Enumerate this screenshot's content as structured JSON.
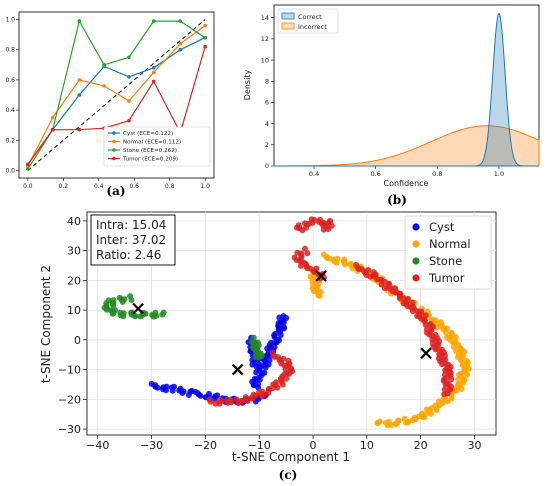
{
  "chart_data": [
    {
      "type": "line",
      "panel_label": "(a)",
      "x": [
        0.0,
        0.14,
        0.29,
        0.43,
        0.57,
        0.71,
        0.86,
        1.0
      ],
      "series": [
        {
          "name": "Cyst (ECE=0.122)",
          "color": "#1f77b4",
          "values": [
            0.04,
            0.27,
            0.5,
            0.69,
            0.62,
            0.68,
            0.8,
            0.88
          ]
        },
        {
          "name": "Normal (ECE=0.112)",
          "color": "#ff7f0e",
          "values": [
            0.03,
            0.35,
            0.6,
            0.56,
            0.46,
            0.65,
            0.84,
            0.96
          ]
        },
        {
          "name": "Stone (ECE=0.262)",
          "color": "#2ca02c",
          "values": [
            0.01,
            0.27,
            0.99,
            0.7,
            0.75,
            0.99,
            0.99,
            0.88
          ]
        },
        {
          "name": "Tumor (ECE=0.209)",
          "color": "#d62728",
          "values": [
            0.04,
            0.27,
            0.27,
            0.28,
            0.33,
            0.59,
            0.25,
            0.82
          ]
        }
      ],
      "diagonal": [
        [
          0,
          0
        ],
        [
          1,
          1
        ]
      ],
      "xlim": [
        -0.05,
        1.05
      ],
      "ylim": [
        -0.05,
        1.05
      ],
      "xticks": [
        "0.0",
        "0.2",
        "0.4",
        "0.6",
        "0.8",
        "1.0"
      ],
      "yticks": [
        "0.0",
        "0.2",
        "0.4",
        "0.6",
        "0.8",
        "1.0"
      ],
      "legend_loc": "lower-right"
    },
    {
      "type": "area",
      "panel_label": "(b)",
      "xlabel": "Confidence",
      "ylabel": "Density",
      "xlim": [
        0.27,
        1.13
      ],
      "ylim": [
        0,
        15.2
      ],
      "xticks": [
        "0.4",
        "0.6",
        "0.8",
        "1.0"
      ],
      "yticks": [
        "0",
        "2",
        "4",
        "6",
        "8",
        "10",
        "12",
        "14"
      ],
      "legend_loc": "top-left",
      "series": [
        {
          "name": "Correct",
          "color": "#1f77b4",
          "peak": 1.0,
          "peak_density": 14.4,
          "spread": 0.02
        },
        {
          "name": "Incorrect",
          "color": "#ff7f0e",
          "peak": 0.96,
          "peak_density": 3.8,
          "spread": 0.18
        }
      ]
    },
    {
      "type": "scatter",
      "panel_label": "(c)",
      "xlabel": "t-SNE Component 1",
      "ylabel": "t-SNE Component 2",
      "xlim": [
        -42,
        34
      ],
      "ylim": [
        -32,
        43
      ],
      "xticks": [
        "−40",
        "−30",
        "−20",
        "−10",
        "0",
        "10",
        "20",
        "30"
      ],
      "yticks": [
        "−30",
        "−20",
        "−10",
        "0",
        "10",
        "20",
        "30",
        "40"
      ],
      "legend_loc": "top-right",
      "stats_box": [
        "Intra: 15.04",
        "Inter: 37.02",
        "Ratio: 2.46"
      ],
      "centroids": [
        [
          -32.5,
          10.5
        ],
        [
          -14,
          -10
        ],
        [
          1.5,
          21.5
        ],
        [
          21,
          -4.5
        ]
      ],
      "series": [
        {
          "name": "Cyst",
          "color": "#0000ee",
          "paths": [
            [
              [
                -30,
                -15.5
              ],
              [
                -26,
                -16.5
              ],
              [
                -22,
                -18
              ],
              [
                -18,
                -19.5
              ],
              [
                -15,
                -20.5
              ],
              [
                -12,
                -20.5
              ],
              [
                -9,
                -19
              ]
            ],
            [
              [
                -11,
                -16
              ],
              [
                -10,
                -12
              ],
              [
                -9,
                -8
              ],
              [
                -8,
                -4
              ],
              [
                -7,
                0
              ],
              [
                -6,
                4
              ],
              [
                -5.5,
                8
              ]
            ],
            [
              [
                -11.5,
                0
              ],
              [
                -11,
                -4
              ],
              [
                -10.5,
                -9
              ]
            ]
          ]
        },
        {
          "name": "Normal",
          "color": "#ffa500",
          "paths": [
            [
              [
                2,
                28
              ],
              [
                6,
                26
              ],
              [
                10,
                23
              ],
              [
                13,
                19
              ],
              [
                16,
                15
              ],
              [
                19,
                11
              ],
              [
                22,
                7
              ],
              [
                25,
                3
              ],
              [
                27,
                -3
              ],
              [
                28.5,
                -9
              ],
              [
                27,
                -16
              ],
              [
                24,
                -21
              ],
              [
                20,
                -26
              ],
              [
                16,
                -28
              ],
              [
                12,
                -28
              ]
            ],
            [
              [
                0,
                22
              ],
              [
                1,
                15
              ]
            ]
          ]
        },
        {
          "name": "Stone",
          "color": "#228b22",
          "paths": [
            [
              [
                -34,
                14
              ],
              [
                -37,
                13
              ],
              [
                -38.5,
                11
              ],
              [
                -37,
                9
              ],
              [
                -34,
                8.5
              ],
              [
                -31,
                8.5
              ],
              [
                -28,
                8.5
              ]
            ],
            [
              [
                -11,
                0
              ],
              [
                -10.5,
                -3
              ],
              [
                -10,
                -6
              ]
            ]
          ]
        },
        {
          "name": "Tumor",
          "color": "#dd2222",
          "paths": [
            [
              [
                -3,
                37
              ],
              [
                0,
                40
              ],
              [
                3,
                39.5
              ],
              [
                2,
                37
              ]
            ],
            [
              [
                -1.5,
                30
              ],
              [
                -3,
                27.5
              ],
              [
                -1.5,
                25
              ],
              [
                0.5,
                23
              ],
              [
                2,
                21
              ]
            ],
            [
              [
                -7.5,
                -5
              ],
              [
                -4,
                -9
              ],
              [
                -6,
                -14
              ],
              [
                -9,
                -18
              ],
              [
                -14,
                -20.8
              ],
              [
                -19,
                -20.8
              ]
            ],
            [
              [
                8,
                24.5
              ],
              [
                12,
                21
              ],
              [
                16,
                15
              ],
              [
                21,
                6.5
              ],
              [
                25,
                -10
              ],
              [
                25,
                -18
              ]
            ]
          ]
        }
      ]
    }
  ]
}
